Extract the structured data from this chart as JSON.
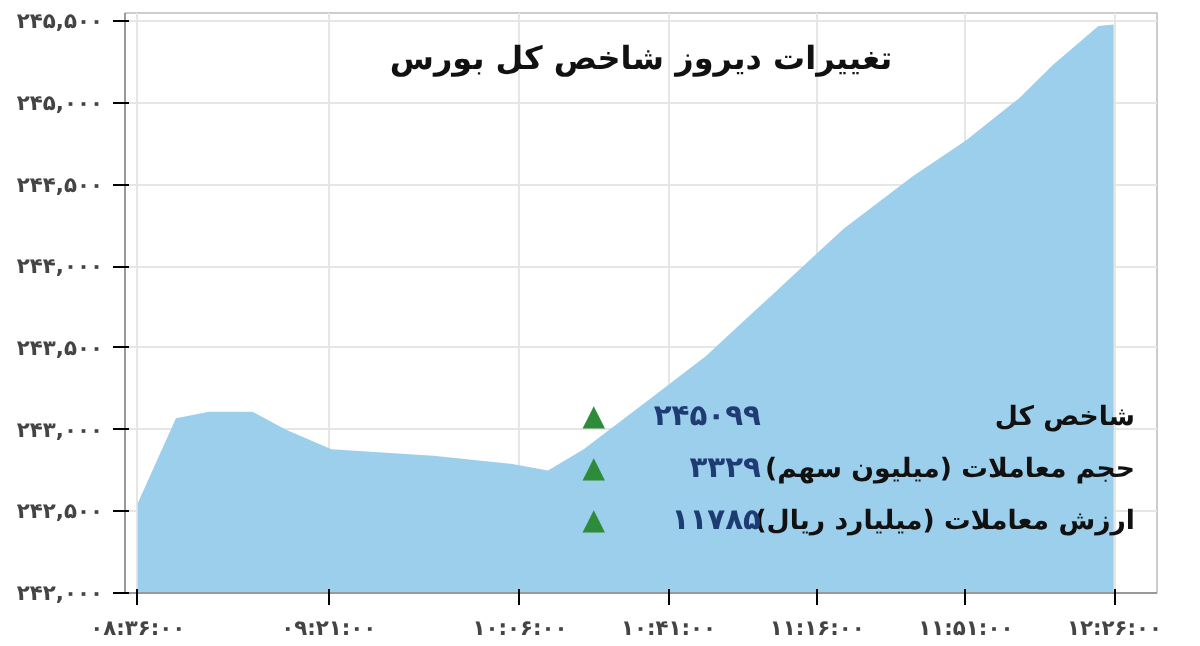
{
  "chart_data": {
    "type": "area",
    "title": "تغییرات دیروز شاخص کل بورس",
    "x": [
      8.6,
      8.75,
      8.88,
      9.05,
      9.18,
      9.36,
      9.76,
      10.07,
      10.21,
      10.35,
      10.62,
      10.83,
      11.1,
      11.37,
      11.64,
      11.85,
      12.06,
      12.19,
      12.37,
      12.43
    ],
    "series": [
      {
        "color": "#9ccfeb",
        "values": [
          242550,
          243070,
          243110,
          243110,
          243000,
          242880,
          242840,
          242790,
          242750,
          242880,
          243200,
          243450,
          243840,
          244230,
          244550,
          244770,
          245030,
          245230,
          245470,
          245480
        ]
      }
    ],
    "xlim": [
      8.55,
      12.6
    ],
    "ylim": [
      242000,
      245550
    ],
    "xticks": [
      {
        "value": 8.6,
        "label": "۰۸:۳۶:۰۰"
      },
      {
        "value": 9.35,
        "label": "۰۹:۲۱:۰۰"
      },
      {
        "value": 10.1,
        "label": "۱۰:۰۶:۰۰"
      },
      {
        "value": 10.68333,
        "label": "۱۰:۴۱:۰۰"
      },
      {
        "value": 11.26667,
        "label": "۱۱:۱۶:۰۰"
      },
      {
        "value": 11.85,
        "label": "۱۱:۵۱:۰۰"
      },
      {
        "value": 12.43333,
        "label": "۱۲:۲۶:۰۰"
      }
    ],
    "yticks": [
      {
        "value": 242000,
        "label": "۲۴۲,۰۰۰"
      },
      {
        "value": 242500,
        "label": "۲۴۲,۵۰۰"
      },
      {
        "value": 243000,
        "label": "۲۴۳,۰۰۰"
      },
      {
        "value": 243500,
        "label": "۲۴۳,۵۰۰"
      },
      {
        "value": 244000,
        "label": "۲۴۴,۰۰۰"
      },
      {
        "value": 244500,
        "label": "۲۴۴,۵۰۰"
      },
      {
        "value": 245000,
        "label": "۲۴۵,۰۰۰"
      },
      {
        "value": 245500,
        "label": "۲۴۵,۵۰۰"
      }
    ],
    "grid": true,
    "annotations": [
      "شاخص کل",
      "۲۴۵۰۹۹",
      "▲",
      "حجم معاملات (میلیون سهم)",
      "۳۳۲۹",
      "▲",
      "ارزش معاملات (میلیارد ریال)",
      "۱۱۷۸۵",
      "▲"
    ]
  }
}
